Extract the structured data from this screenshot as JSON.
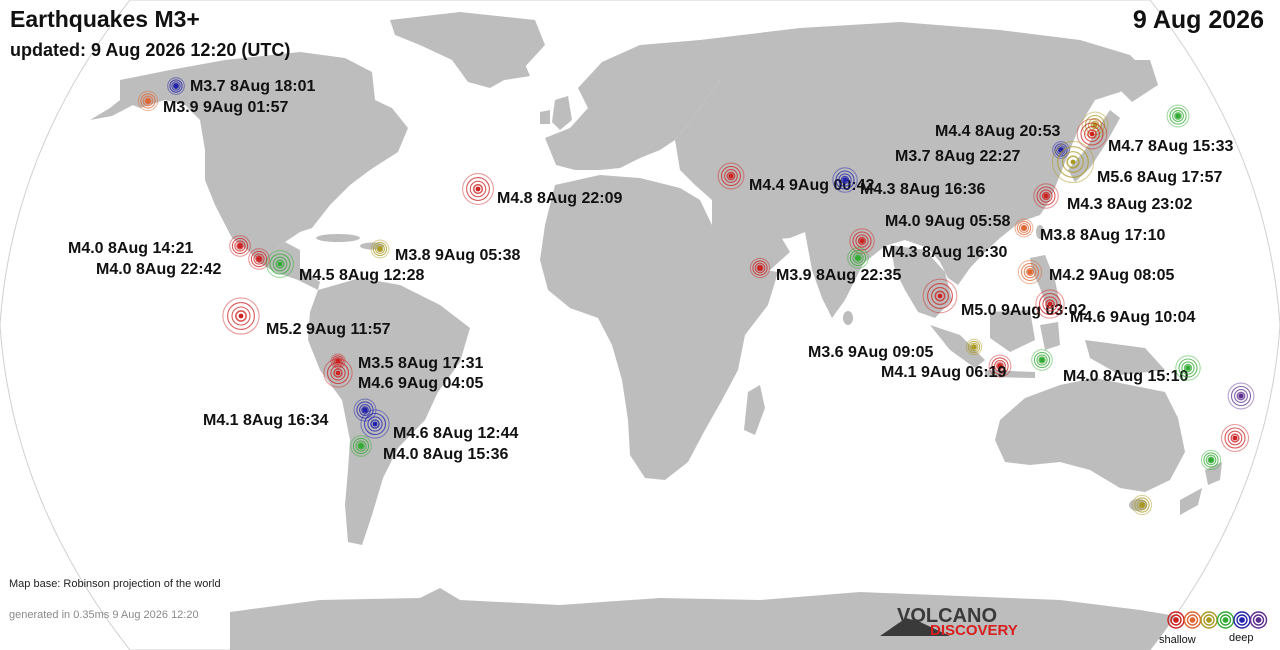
{
  "header": {
    "title": "Earthquakes M3+",
    "updated": "updated:  9 Aug 2026 12:20 (UTC)",
    "date": "9 Aug 2026"
  },
  "footer": {
    "map_base": "Map base: Robinson projection of the world",
    "generated": "generated in 0.35ms 9 Aug 2026 12:20"
  },
  "logo": {
    "line1": "VOLCANO",
    "line2": "DISCOVERY"
  },
  "legend": {
    "shallow": "shallow",
    "deep": "deep"
  },
  "depth_colors": {
    "shallow": "#cc2222",
    "mid_shallow": "#dd6633",
    "intermediate": "#aa9922",
    "mid_deep": "#33aa33",
    "deep": "#2222aa",
    "very_deep": "#5b2d8c"
  },
  "quakes": [
    {
      "label": "M3.7 8Aug 18:01",
      "mag": 3.7,
      "depth": "deep"
    },
    {
      "label": "M3.9 9Aug 01:57",
      "mag": 3.9,
      "depth": "mid_shallow"
    },
    {
      "label": "M4.8 8Aug 22:09",
      "mag": 4.8,
      "depth": "shallow"
    },
    {
      "label": "M4.0 8Aug 14:21",
      "mag": 4.0,
      "depth": "shallow"
    },
    {
      "label": "M4.0 8Aug 22:42",
      "mag": 4.0,
      "depth": "shallow"
    },
    {
      "label": "M4.5 8Aug 12:28",
      "mag": 4.5,
      "depth": "mid_deep"
    },
    {
      "label": "M3.8 9Aug 05:38",
      "mag": 3.8,
      "depth": "intermediate"
    },
    {
      "label": "M5.2 9Aug 11:57",
      "mag": 5.2,
      "depth": "shallow"
    },
    {
      "label": "M3.5 8Aug 17:31",
      "mag": 3.5,
      "depth": "shallow"
    },
    {
      "label": "M4.6 9Aug 04:05",
      "mag": 4.6,
      "depth": "shallow"
    },
    {
      "label": "M4.1 8Aug 16:34",
      "mag": 4.1,
      "depth": "deep"
    },
    {
      "label": "M4.6 8Aug 12:44",
      "mag": 4.6,
      "depth": "deep"
    },
    {
      "label": "M4.0 8Aug 15:36",
      "mag": 4.0,
      "depth": "mid_deep"
    },
    {
      "label": "M4.4 9Aug 00:42",
      "mag": 4.4,
      "depth": "shallow"
    },
    {
      "label": "M4.3 8Aug 16:36",
      "mag": 4.3,
      "depth": "deep"
    },
    {
      "label": "M3.9 8Aug 22:35",
      "mag": 3.9,
      "depth": "shallow"
    },
    {
      "label": "M4.3 8Aug 16:30",
      "mag": 4.3,
      "depth": "shallow"
    },
    {
      "label": "M4.0 9Aug 05:58",
      "mag": 4.0,
      "depth": "mid_deep"
    },
    {
      "label": "M4.4 8Aug 20:53",
      "mag": 4.4,
      "depth": "intermediate"
    },
    {
      "label": "M3.7 8Aug 22:27",
      "mag": 3.7,
      "depth": "deep"
    },
    {
      "label": "M4.7 8Aug 15:33",
      "mag": 4.7,
      "depth": "shallow"
    },
    {
      "label": "M5.6 8Aug 17:57",
      "mag": 5.6,
      "depth": "intermediate"
    },
    {
      "label": "M4.3 8Aug 23:02",
      "mag": 4.3,
      "depth": "shallow"
    },
    {
      "label": "M3.8 8Aug 17:10",
      "mag": 3.8,
      "depth": "mid_shallow"
    },
    {
      "label": "M4.2 9Aug 08:05",
      "mag": 4.2,
      "depth": "mid_shallow"
    },
    {
      "label": "M5.0 9Aug 03:02",
      "mag": 5.0,
      "depth": "shallow"
    },
    {
      "label": "M4.6 9Aug 10:04",
      "mag": 4.6,
      "depth": "shallow"
    },
    {
      "label": "M3.6 9Aug 09:05",
      "mag": 3.6,
      "depth": "intermediate"
    },
    {
      "label": "M4.1 9Aug 06:19",
      "mag": 4.1,
      "depth": "shallow"
    },
    {
      "label": "M4.0 8Aug 15:10",
      "mag": 4.0,
      "depth": "mid_deep"
    },
    {
      "label": "",
      "mag": 4.3,
      "depth": "mid_deep"
    },
    {
      "label": "",
      "mag": 4.1,
      "depth": "mid_deep"
    },
    {
      "label": "",
      "mag": 4.4,
      "depth": "very_deep"
    },
    {
      "label": "",
      "mag": 4.5,
      "depth": "shallow"
    },
    {
      "label": "",
      "mag": 3.9,
      "depth": "mid_deep"
    },
    {
      "label": "",
      "mag": 3.9,
      "depth": "intermediate"
    }
  ]
}
